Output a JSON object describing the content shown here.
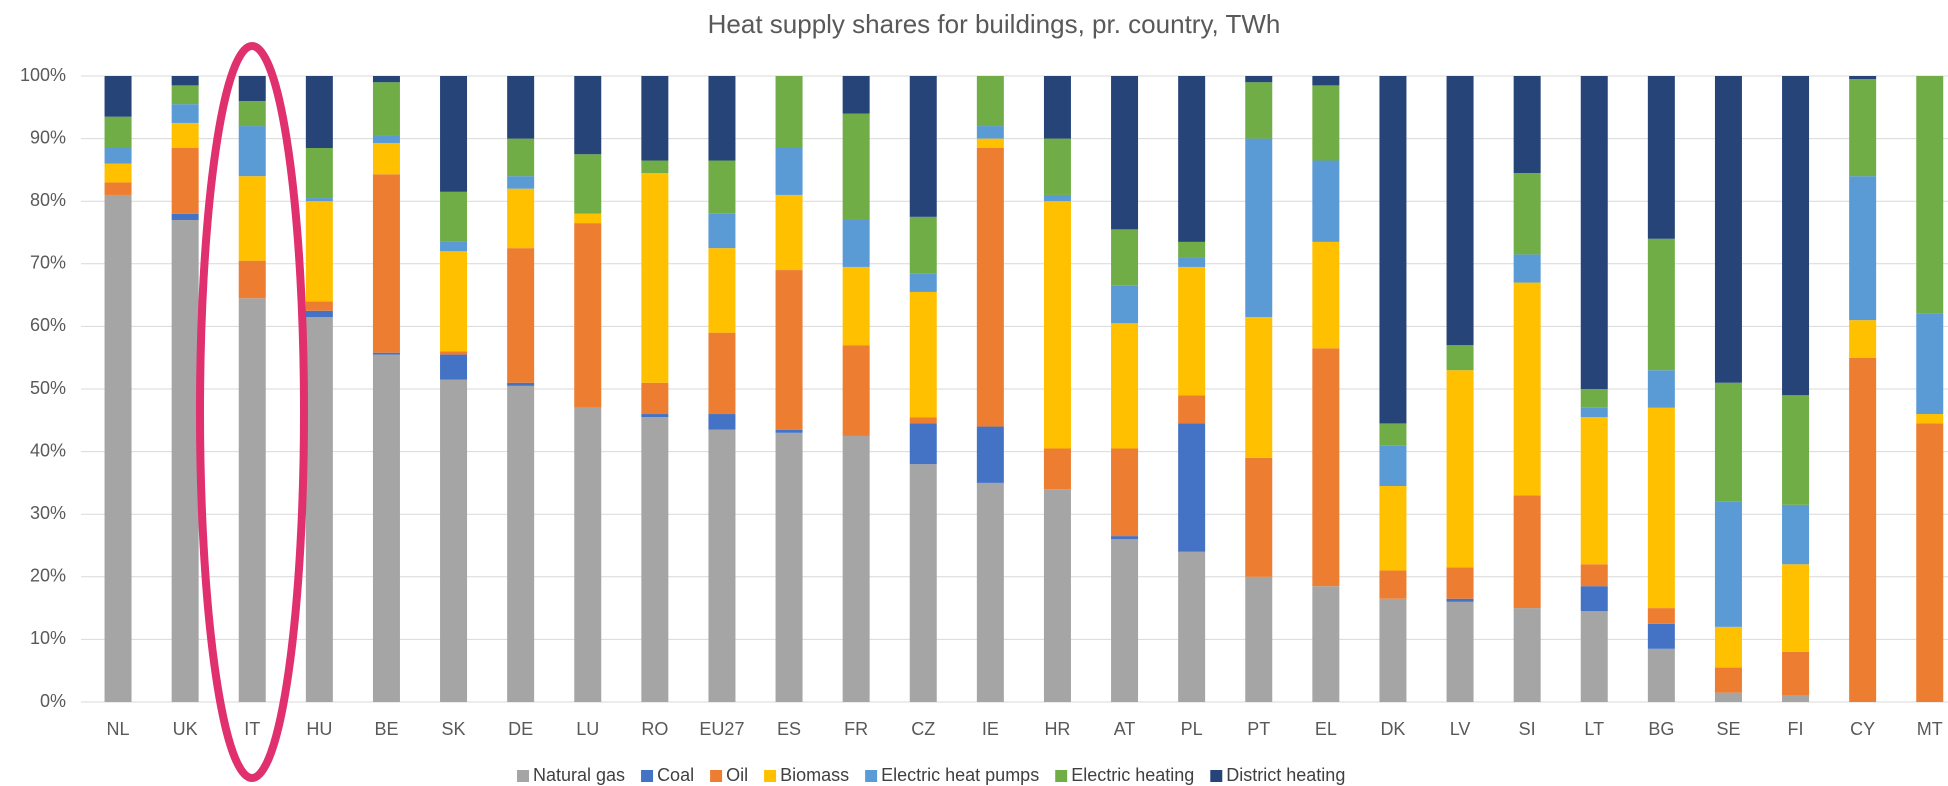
{
  "chart_data": {
    "type": "stacked_bar",
    "title": "Heat supply shares for buildings, pr. country, TWh",
    "categories": [
      "NL",
      "UK",
      "IT",
      "HU",
      "BE",
      "SK",
      "DE",
      "LU",
      "RO",
      "EU27",
      "ES",
      "FR",
      "CZ",
      "IE",
      "HR",
      "AT",
      "PL",
      "PT",
      "EL",
      "DK",
      "LV",
      "SI",
      "LT",
      "BG",
      "SE",
      "FI",
      "CY",
      "MT"
    ],
    "series": [
      {
        "name": "Natural gas",
        "color": "#a5a5a5",
        "values": [
          81,
          77,
          64.5,
          61.5,
          55.5,
          51.5,
          50.5,
          47,
          45.5,
          43.5,
          43,
          42.5,
          38,
          35,
          34,
          26,
          24,
          20,
          18.5,
          16.5,
          16,
          15,
          14.5,
          8.5,
          1.5,
          1,
          0,
          0
        ]
      },
      {
        "name": "Coal",
        "color": "#4472c4",
        "values": [
          0,
          1,
          0,
          1,
          0.3,
          4,
          0.5,
          0,
          0.5,
          2.5,
          0.5,
          0,
          6.5,
          9,
          0,
          0.5,
          20.5,
          0,
          0,
          0,
          0.5,
          0,
          4,
          4,
          0,
          0,
          0,
          0
        ]
      },
      {
        "name": "Oil",
        "color": "#ed7d31",
        "values": [
          2,
          10.5,
          6,
          1.5,
          28.5,
          0.5,
          21.5,
          29.5,
          5,
          13,
          25.5,
          14.5,
          1,
          44.5,
          6.5,
          14,
          4.5,
          19,
          38,
          4.5,
          5,
          18,
          3.5,
          2.5,
          4,
          7,
          55,
          44.5
        ]
      },
      {
        "name": "Biomass",
        "color": "#ffc000",
        "values": [
          3,
          4,
          13.5,
          16,
          5,
          16,
          9.5,
          1.5,
          33.5,
          13.5,
          12,
          12.5,
          20,
          1.5,
          39.5,
          20,
          20.5,
          22.5,
          17,
          13.5,
          31.5,
          34,
          23.5,
          32,
          6.5,
          14,
          6,
          1.5
        ]
      },
      {
        "name": "Electric heat pumps",
        "color": "#5b9bd5",
        "values": [
          2.5,
          3,
          8,
          0.5,
          1.2,
          1.5,
          2,
          0,
          0,
          5.5,
          7.5,
          7.5,
          3,
          2,
          1,
          6,
          1.5,
          28.5,
          13,
          6.5,
          0,
          4.5,
          1.5,
          6,
          20,
          9.5,
          23,
          16
        ]
      },
      {
        "name": "Electric heating",
        "color": "#70ad47",
        "values": [
          5,
          3,
          4,
          8,
          8.5,
          8,
          6,
          9.5,
          2,
          8.5,
          11.5,
          17,
          9,
          8,
          9,
          9,
          2.5,
          9,
          12,
          3.5,
          4,
          13,
          3,
          21,
          19,
          17.5,
          15.5,
          38
        ]
      },
      {
        "name": "District heating",
        "color": "#264478",
        "values": [
          6.5,
          1.5,
          4,
          11.5,
          1,
          18.5,
          10,
          12.5,
          13.5,
          13.5,
          0,
          6,
          22.5,
          0,
          10,
          24.5,
          26.5,
          1,
          1.5,
          55.5,
          43,
          15.5,
          50,
          26,
          49,
          51,
          0.5,
          0
        ]
      }
    ],
    "ylim": [
      0,
      100
    ],
    "yticks": [
      {
        "value": 0,
        "label": "0%"
      },
      {
        "value": 10,
        "label": "10%"
      },
      {
        "value": 20,
        "label": "20%"
      },
      {
        "value": 30,
        "label": "30%"
      },
      {
        "value": 40,
        "label": "40%"
      },
      {
        "value": 50,
        "label": "50%"
      },
      {
        "value": 60,
        "label": "60%"
      },
      {
        "value": 70,
        "label": "70%"
      },
      {
        "value": 80,
        "label": "80%"
      },
      {
        "value": 90,
        "label": "90%"
      },
      {
        "value": 100,
        "label": "100%"
      }
    ],
    "grid": true,
    "legend": "bottom"
  }
}
